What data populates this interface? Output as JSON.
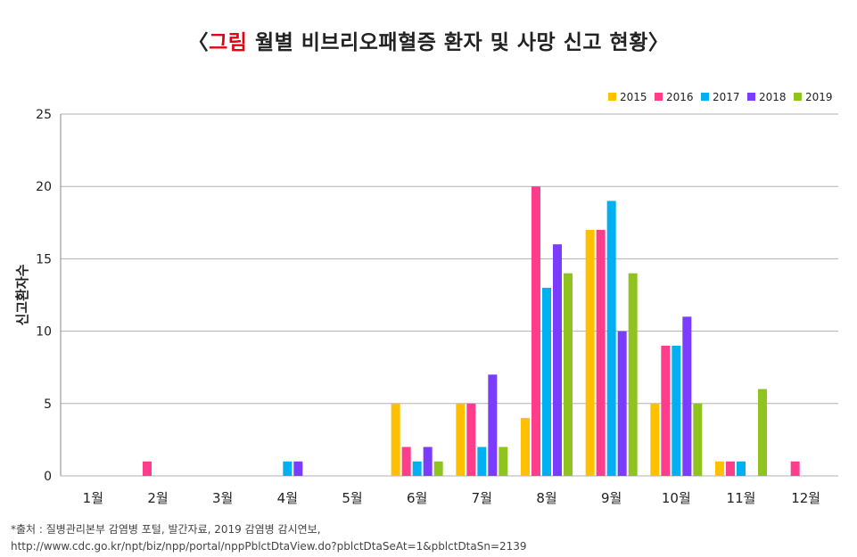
{
  "header": {
    "bracket_open": "〈",
    "accent": "그림",
    "title": " 월별 비브리오패혈증 환자 및 사망 신고 현황",
    "bracket_close": "〉"
  },
  "source": {
    "line1": "*출처 : 질병관리본부 감염병 포털, 발간자료, 2019 감염병 감시연보,",
    "line2": "http://www.cdc.go.kr/npt/biz/npp/portal/nppPblctDtaView.do?pblctDtaSeAt=1&pblctDtaSn=2139"
  },
  "colors": {
    "2015": "#ffc000",
    "2016": "#ff3d8b",
    "2017": "#00b0f0",
    "2018": "#7a3cff",
    "2019": "#8fc31f",
    "grid": "#b0b0b0"
  },
  "chart_data": {
    "type": "bar",
    "title": "",
    "xlabel": "",
    "ylabel": "신고환자수",
    "ylim": [
      0,
      25
    ],
    "yticks": [
      0,
      5,
      10,
      15,
      20,
      25
    ],
    "grid": true,
    "legend_position": "top-right",
    "categories": [
      "1월",
      "2월",
      "3월",
      "4월",
      "5월",
      "6월",
      "7월",
      "8월",
      "9월",
      "10월",
      "11월",
      "12월"
    ],
    "series": [
      {
        "name": "2015",
        "values": [
          0,
          0,
          0,
          0,
          0,
          5,
          5,
          4,
          17,
          5,
          1,
          0
        ]
      },
      {
        "name": "2016",
        "values": [
          0,
          1,
          0,
          0,
          0,
          2,
          5,
          20,
          17,
          9,
          1,
          1
        ]
      },
      {
        "name": "2017",
        "values": [
          0,
          0,
          0,
          1,
          0,
          1,
          2,
          13,
          19,
          9,
          1,
          0
        ]
      },
      {
        "name": "2018",
        "values": [
          0,
          0,
          0,
          1,
          0,
          2,
          7,
          16,
          10,
          11,
          0,
          0
        ]
      },
      {
        "name": "2019",
        "values": [
          0,
          0,
          0,
          0,
          0,
          1,
          2,
          14,
          14,
          5,
          6,
          0
        ]
      }
    ]
  }
}
